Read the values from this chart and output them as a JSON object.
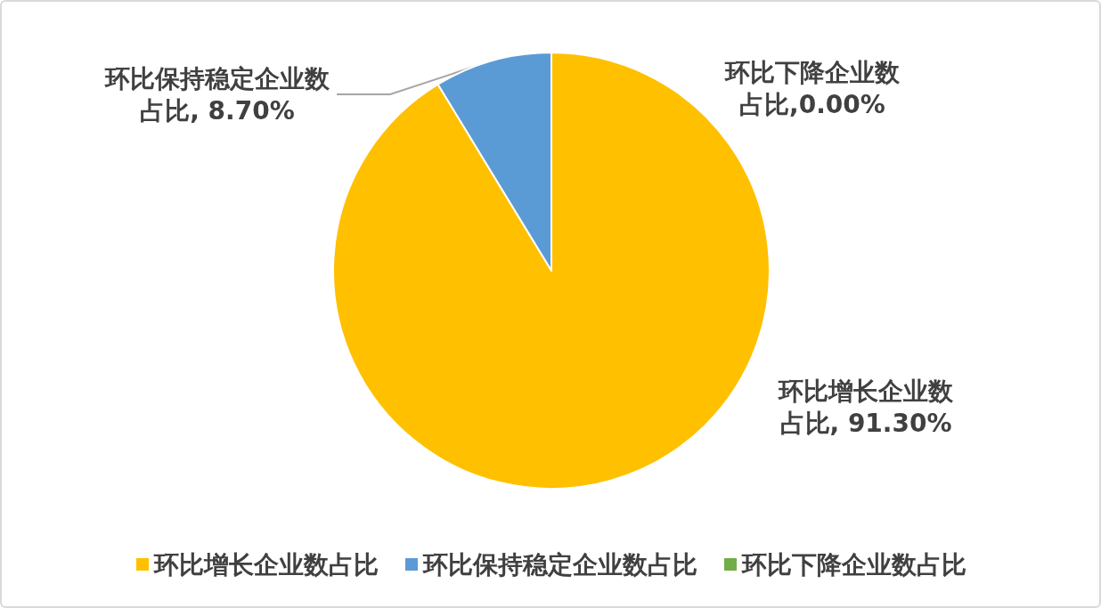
{
  "chart_data": {
    "type": "pie",
    "categories": [
      "环比增长企业数占比",
      "环比保持稳定企业数占比",
      "环比下降企业数占比"
    ],
    "values": [
      91.3,
      8.7,
      0
    ],
    "colors": [
      "#ffc000",
      "#5b9bd5",
      "#70ad47"
    ],
    "value_labels": [
      "环比增长企业数占比, 91.30%",
      "环比保持稳定企业数占比, 8.70%",
      "环比下降企业数占比,0.00%"
    ],
    "legend": "bottom"
  }
}
